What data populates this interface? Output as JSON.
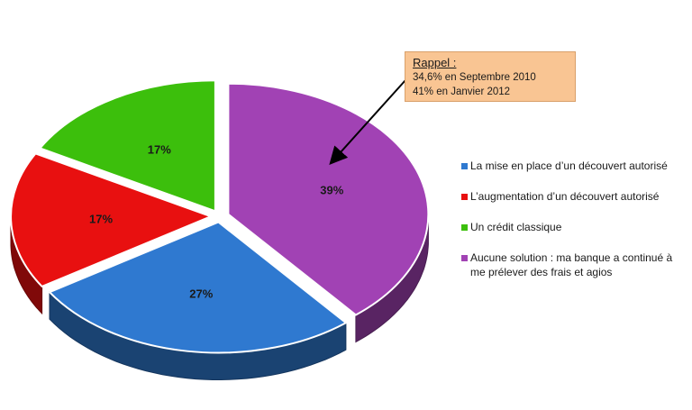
{
  "chart_data": {
    "type": "pie",
    "slices": [
      {
        "label": "Aucune solution : ma banque a continué à me prélever des frais et agios",
        "value": 39,
        "display": "39%",
        "color": "#a142b4"
      },
      {
        "label": "La mise en place d’un découvert autorisé",
        "value": 27,
        "display": "27%",
        "color": "#2f79d0"
      },
      {
        "label": "L’augmentation d’un découvert autorisé",
        "value": 17,
        "display": "17%",
        "color": "#e81010"
      },
      {
        "label": "Un crédit classique",
        "value": 17,
        "display": "17%",
        "color": "#3cbf0c"
      }
    ],
    "legend": [
      {
        "text": "La mise en place d’un découvert autorisé",
        "color": "#2f79d0"
      },
      {
        "text": "L’augmentation d’un découvert autorisé",
        "color": "#e81010"
      },
      {
        "text": "Un crédit classique",
        "color": "#3cbf0c"
      },
      {
        "text": "Aucune solution : ma banque a continué à me prélever des frais et agios",
        "color": "#a142b4"
      }
    ],
    "legend_position": "right",
    "annotation": {
      "title": "Rappel :",
      "lines": [
        "34,6% en Septembre 2010",
        "41% en Janvier 2012"
      ],
      "points_to": "Aucune solution : ma banque a continué à me prélever des frais et agios"
    }
  }
}
